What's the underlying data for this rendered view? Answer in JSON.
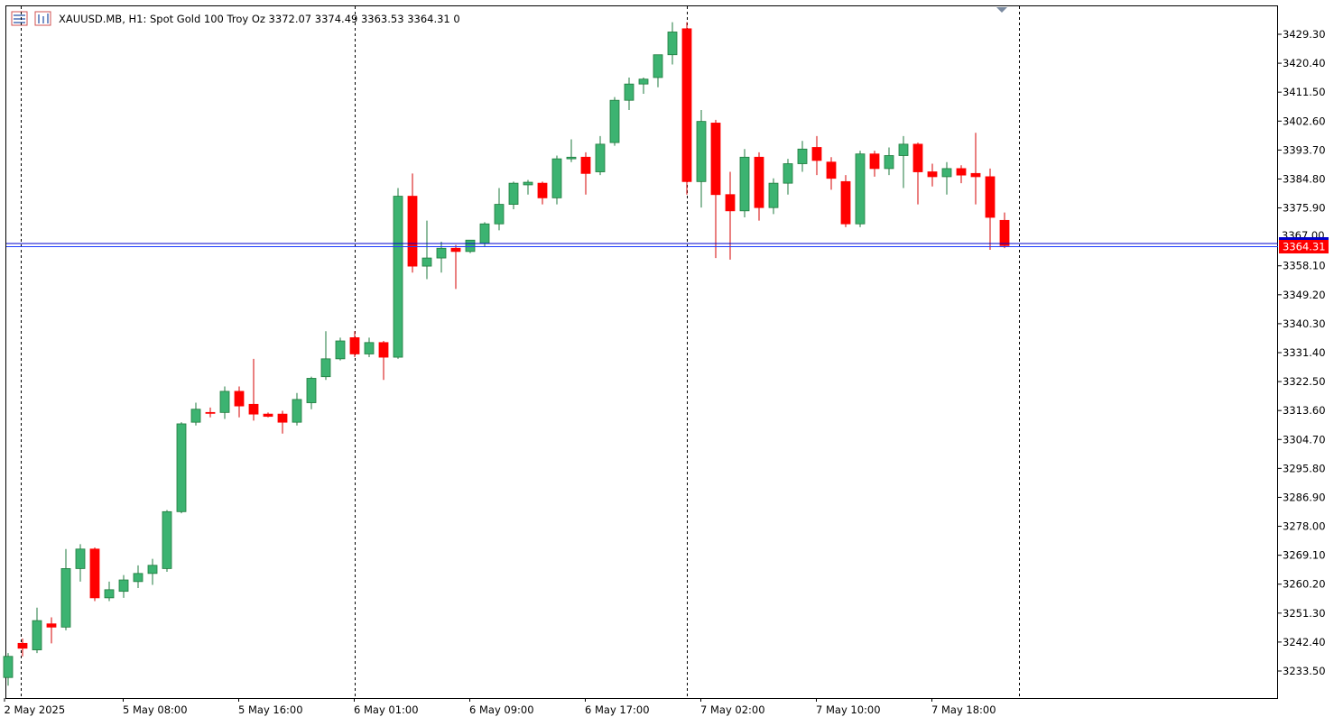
{
  "header": {
    "symbol_line": "XAUUSD.MB, H1:  Spot Gold 100 Troy Oz  3372.07 3374.49 3363.53 3364.31  0"
  },
  "current_price_label": "3364.31",
  "hidden_line_label": "3367.00",
  "colors": {
    "bull": "#3cb371",
    "bear": "#ff0000",
    "bid_line": "#0000cd",
    "ask_line": "#1e90ff",
    "price_tag": "#ff0000"
  },
  "chart_data": {
    "type": "candlestick",
    "symbol": "XAUUSD.MB",
    "timeframe": "H1",
    "description": "Spot Gold 100 Troy Oz",
    "ohlc_header": {
      "open": 3372.07,
      "high": 3374.49,
      "low": 3363.53,
      "close": 3364.31,
      "volume": 0
    },
    "ylim": [
      3224.0,
      3436.0
    ],
    "y_ticks": [
      "3429.30",
      "3420.40",
      "3411.50",
      "3402.60",
      "3393.70",
      "3384.80",
      "3375.90",
      "3358.10",
      "3349.20",
      "3340.30",
      "3331.40",
      "3322.50",
      "3313.60",
      "3304.70",
      "3295.80",
      "3286.90",
      "3278.00",
      "3269.10",
      "3260.20",
      "3251.30",
      "3242.40",
      "3233.50"
    ],
    "x_labels": [
      {
        "label": "2 May 2025",
        "index": 0
      },
      {
        "label": "5 May 08:00",
        "index": 8
      },
      {
        "label": "5 May 16:00",
        "index": 16
      },
      {
        "label": "6 May 01:00",
        "index": 24
      },
      {
        "label": "6 May 09:00",
        "index": 32
      },
      {
        "label": "6 May 17:00",
        "index": 40
      },
      {
        "label": "7 May 02:00",
        "index": 48
      },
      {
        "label": "7 May 10:00",
        "index": 56
      },
      {
        "label": "7 May 18:00",
        "index": 64
      }
    ],
    "separators": [
      1,
      24,
      47,
      70
    ],
    "candles": [
      [
        3231.5,
        3239.0,
        3229.0,
        3238.0
      ],
      [
        3242.0,
        3243.5,
        3238.0,
        3240.5
      ],
      [
        3240.0,
        3253.0,
        3239.0,
        3249.0
      ],
      [
        3248.0,
        3250.0,
        3242.0,
        3247.0
      ],
      [
        3247.0,
        3271.0,
        3246.0,
        3265.0
      ],
      [
        3265.0,
        3272.5,
        3261.0,
        3271.0
      ],
      [
        3271.0,
        3271.5,
        3255.0,
        3256.0
      ],
      [
        3256.0,
        3261.0,
        3255.0,
        3258.5
      ],
      [
        3258.0,
        3263.0,
        3256.0,
        3261.5
      ],
      [
        3261.0,
        3266.0,
        3259.0,
        3263.5
      ],
      [
        3263.5,
        3268.0,
        3260.0,
        3266.0
      ],
      [
        3265.0,
        3283.0,
        3264.0,
        3282.5
      ],
      [
        3282.5,
        3310.0,
        3282.0,
        3309.5
      ],
      [
        3310.0,
        3316.0,
        3309.0,
        3314.0
      ],
      [
        3313.0,
        3314.5,
        3311.5,
        3312.8
      ],
      [
        3313.0,
        3321.0,
        3311.0,
        3319.5
      ],
      [
        3319.5,
        3321.0,
        3311.5,
        3315.0
      ],
      [
        3315.5,
        3329.5,
        3310.5,
        3312.5
      ],
      [
        3312.5,
        3313.0,
        3311.5,
        3311.8
      ],
      [
        3312.5,
        3313.5,
        3306.5,
        3310.0
      ],
      [
        3310.0,
        3319.0,
        3309.0,
        3317.0
      ],
      [
        3316.0,
        3324.0,
        3314.0,
        3323.5
      ],
      [
        3324.0,
        3338.0,
        3323.0,
        3329.5
      ],
      [
        3329.5,
        3336.0,
        3329.0,
        3335.0
      ],
      [
        3336.0,
        3338.0,
        3330.0,
        3331.0
      ],
      [
        3331.0,
        3336.0,
        3330.0,
        3334.5
      ],
      [
        3334.5,
        3335.0,
        3323.0,
        3330.0
      ],
      [
        3330.0,
        3382.0,
        3329.5,
        3379.5
      ],
      [
        3379.5,
        3386.5,
        3356.0,
        3358.0
      ],
      [
        3358.0,
        3372.0,
        3354.0,
        3360.5
      ],
      [
        3360.5,
        3365.5,
        3356.0,
        3363.5
      ],
      [
        3363.5,
        3364.5,
        3351.0,
        3362.5
      ],
      [
        3362.5,
        3366.0,
        3362.0,
        3366.0
      ],
      [
        3365.0,
        3371.5,
        3364.0,
        3371.0
      ],
      [
        3371.0,
        3382.0,
        3369.0,
        3377.0
      ],
      [
        3377.0,
        3384.0,
        3375.5,
        3383.5
      ],
      [
        3383.0,
        3384.5,
        3380.0,
        3383.8
      ],
      [
        3383.5,
        3384.0,
        3377.0,
        3379.0
      ],
      [
        3379.0,
        3392.0,
        3377.0,
        3391.0
      ],
      [
        3391.0,
        3397.0,
        3390.0,
        3391.5
      ],
      [
        3391.5,
        3393.0,
        3380.0,
        3386.5
      ],
      [
        3387.0,
        3398.0,
        3386.0,
        3395.5
      ],
      [
        3396.0,
        3410.0,
        3395.0,
        3409.0
      ],
      [
        3409.0,
        3416.0,
        3406.0,
        3414.0
      ],
      [
        3414.0,
        3416.0,
        3411.0,
        3415.5
      ],
      [
        3416.0,
        3423.0,
        3413.0,
        3423.0
      ],
      [
        3423.0,
        3433.0,
        3420.0,
        3430.0
      ],
      [
        3431.0,
        3433.0,
        3380.0,
        3384.0
      ],
      [
        3384.0,
        3406.0,
        3376.0,
        3402.5
      ],
      [
        3402.0,
        3403.0,
        3360.5,
        3380.0
      ],
      [
        3380.0,
        3387.0,
        3360.0,
        3375.0
      ],
      [
        3375.0,
        3394.0,
        3373.0,
        3391.5
      ],
      [
        3391.5,
        3393.0,
        3372.0,
        3376.0
      ],
      [
        3376.0,
        3385.0,
        3374.0,
        3383.5
      ],
      [
        3383.5,
        3391.0,
        3380.0,
        3389.5
      ],
      [
        3389.5,
        3396.5,
        3387.0,
        3394.0
      ],
      [
        3394.5,
        3398.0,
        3386.0,
        3390.5
      ],
      [
        3390.0,
        3391.5,
        3381.5,
        3385.0
      ],
      [
        3384.0,
        3386.0,
        3370.0,
        3371.0
      ],
      [
        3371.0,
        3393.5,
        3370.0,
        3392.5
      ],
      [
        3392.5,
        3393.5,
        3385.5,
        3388.0
      ],
      [
        3388.0,
        3394.5,
        3386.0,
        3392.0
      ],
      [
        3392.0,
        3398.0,
        3382.0,
        3395.5
      ],
      [
        3395.5,
        3396.0,
        3377.0,
        3387.0
      ],
      [
        3387.0,
        3389.5,
        3382.5,
        3385.5
      ],
      [
        3385.5,
        3390.0,
        3380.0,
        3388.0
      ],
      [
        3388.0,
        3389.0,
        3383.5,
        3386.0
      ],
      [
        3386.5,
        3399.0,
        3377.0,
        3385.5
      ],
      [
        3385.5,
        3388.0,
        3363.0,
        3373.0
      ],
      [
        3372.07,
        3374.49,
        3363.53,
        3364.31
      ]
    ]
  }
}
